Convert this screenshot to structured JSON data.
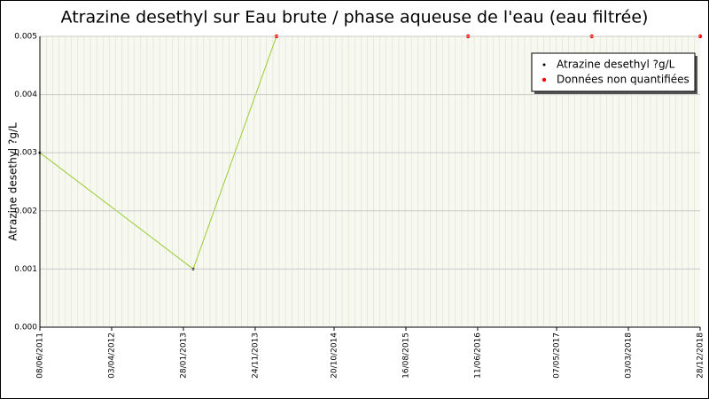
{
  "chart_data": {
    "type": "line",
    "title": "Atrazine desethyl sur Eau brute / phase aqueuse de l'eau (eau filtrée)",
    "y_label": "Atrazine desethyl ?g/L",
    "x": [
      "08/06/2011",
      "10/03/2013",
      "21/02/2014",
      "02/05/2016",
      "01/10/2017",
      "28/12/2018"
    ],
    "series": [
      {
        "name": "Atrazine desethyl ?g/L",
        "color": "#99cc33",
        "marker_color": "#000000",
        "values": [
          0.003,
          0.001,
          0.005,
          0.005,
          0.005,
          0.005
        ]
      },
      {
        "name": "Données non quantifiées",
        "color": "#ff0000",
        "values": [
          null,
          null,
          0.005,
          0.005,
          0.005,
          0.005
        ]
      }
    ],
    "xlim": [
      "08/06/2011",
      "28/12/2018"
    ],
    "xticks": [
      "08/06/2011",
      "03/04/2012",
      "28/01/2013",
      "24/11/2013",
      "20/10/2014",
      "16/08/2015",
      "11/06/2016",
      "07/05/2017",
      "03/03/2018",
      "28/12/2018"
    ],
    "ylim": [
      0,
      0.005
    ],
    "yticks": [
      {
        "value": 0,
        "label": "0.000"
      },
      0.001,
      0.002,
      0.003,
      0.004,
      0.005
    ],
    "grid": true,
    "legend": "top-right"
  }
}
